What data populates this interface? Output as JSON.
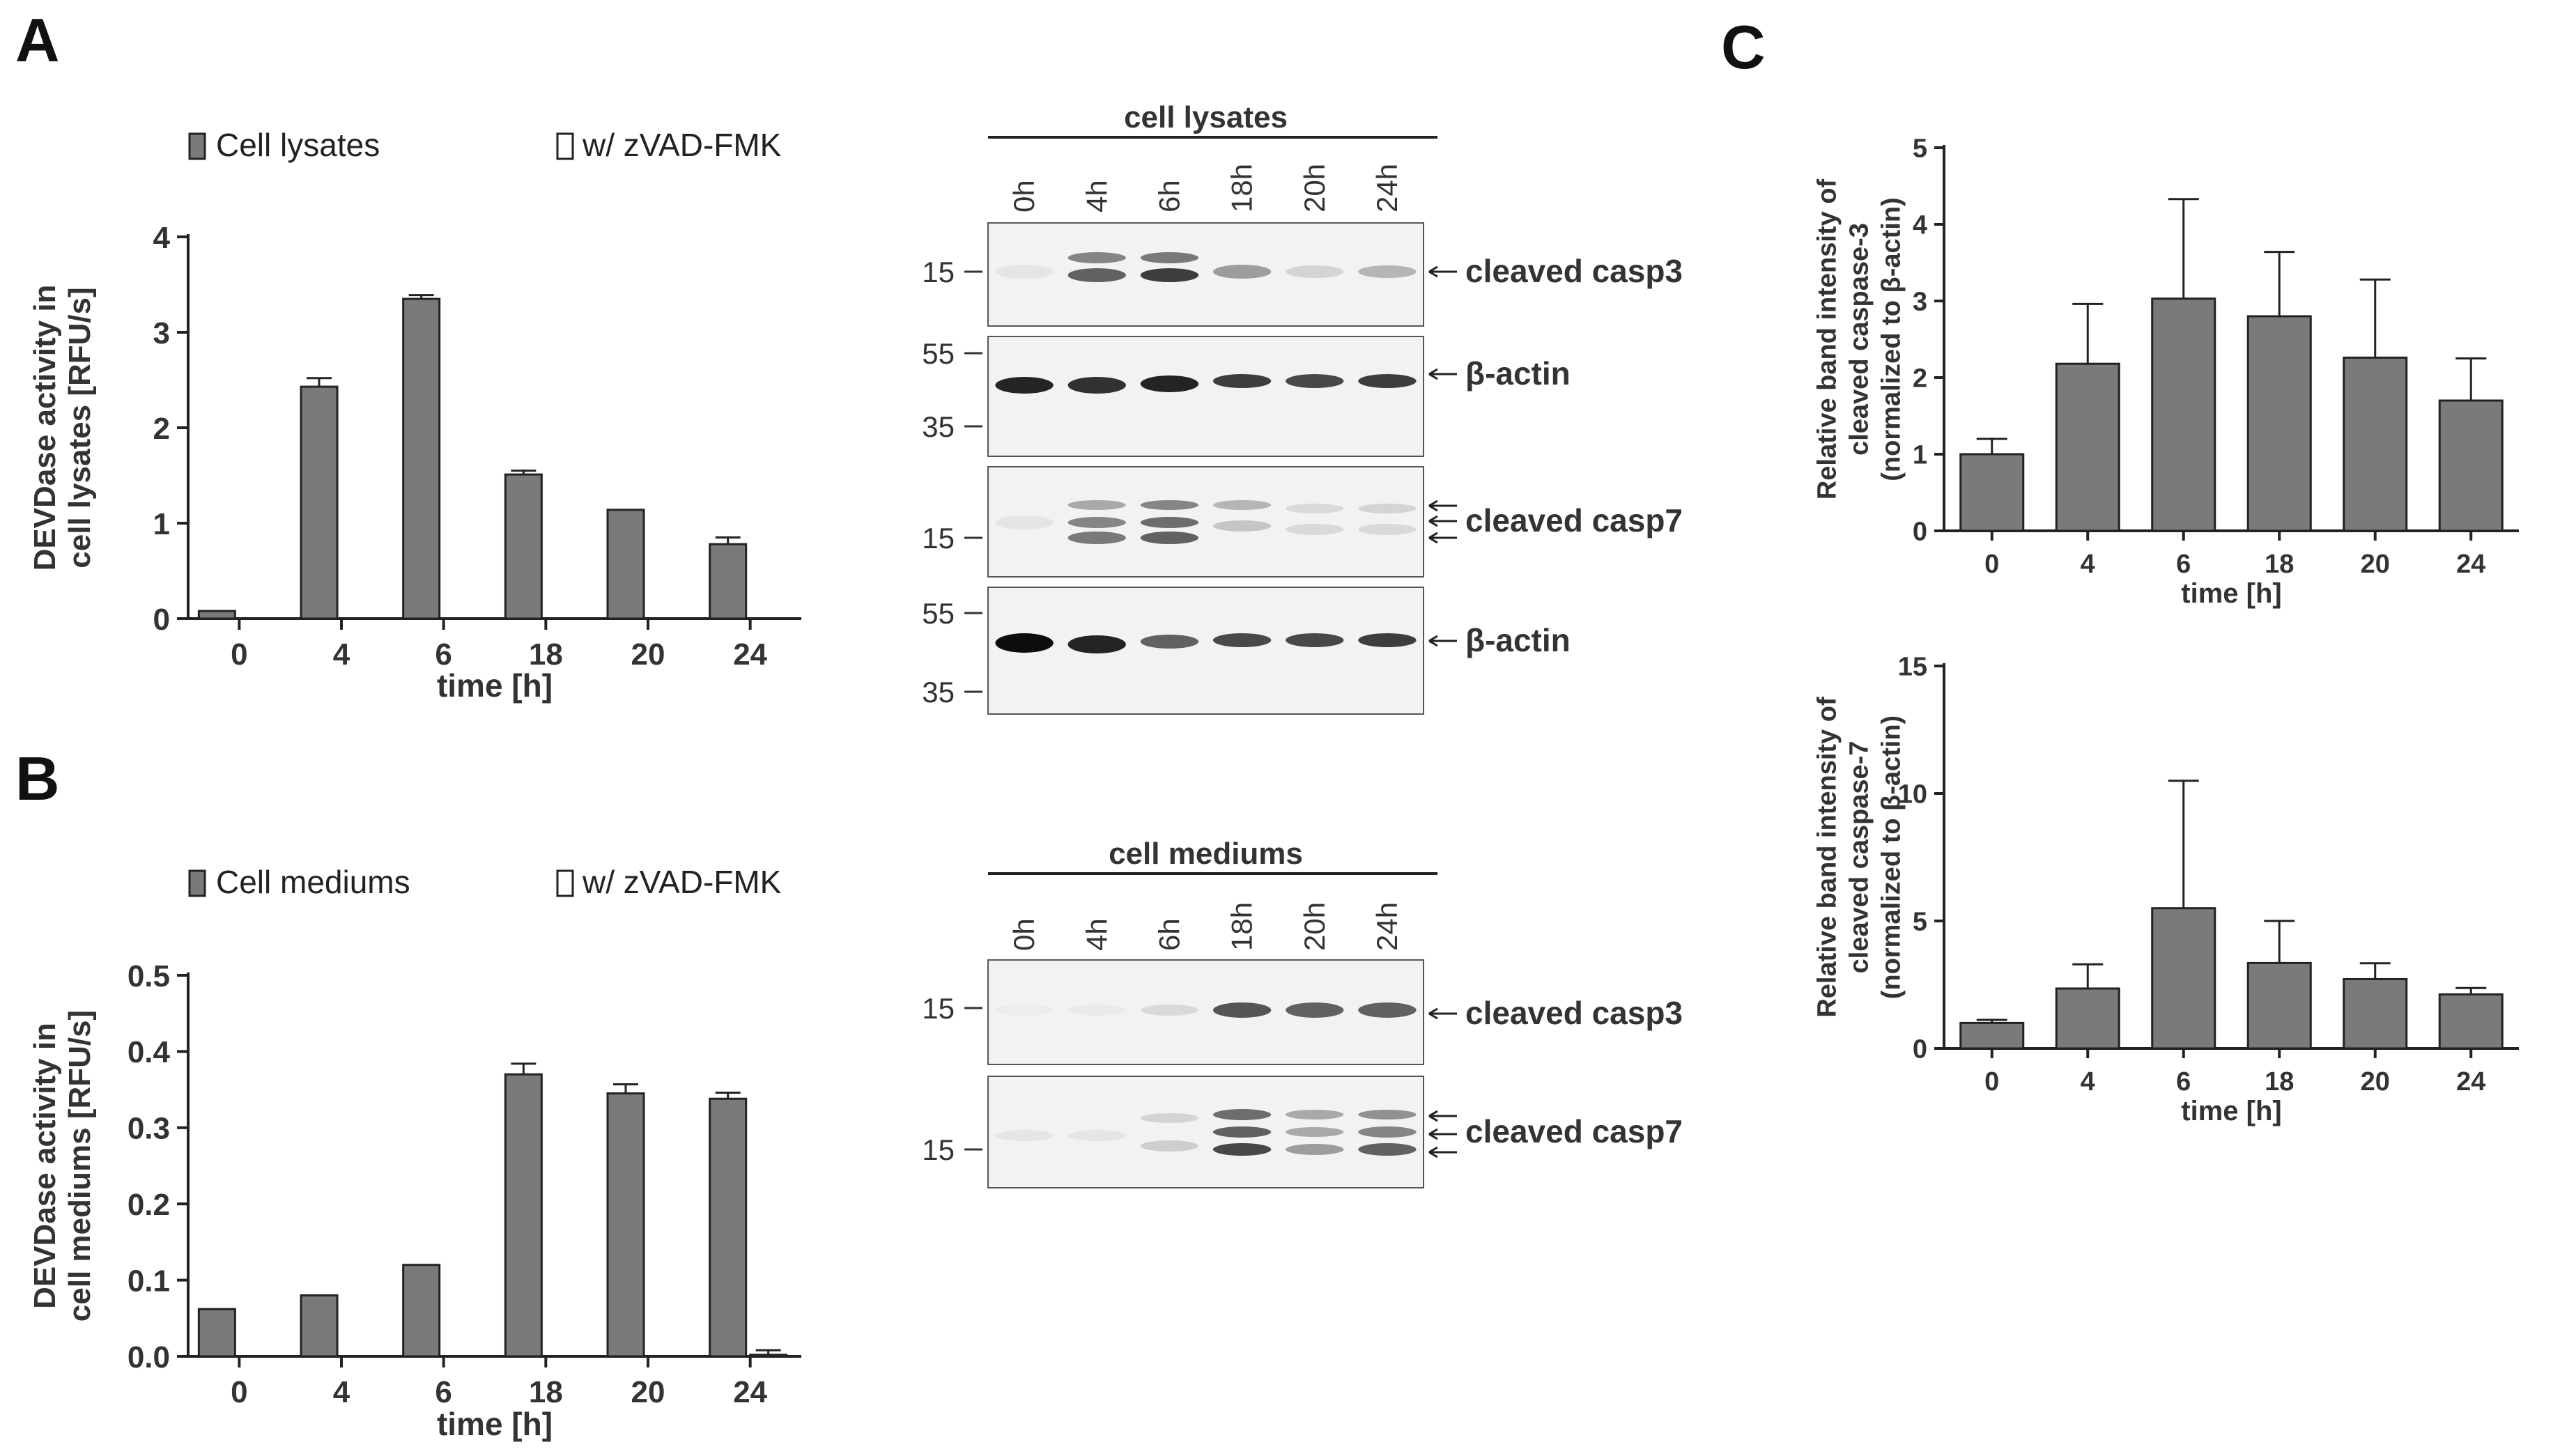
{
  "panels": {
    "A": "A",
    "B": "B",
    "C": "C"
  },
  "colors": {
    "bar_fill": "#7a7a7a",
    "bar_stroke": "#222222",
    "open_fill": "#ffffff",
    "axis": "#222222",
    "blot_bg": "#f2f2f2"
  },
  "chart_data": [
    {
      "id": "A",
      "type": "bar",
      "legend": [
        "Cell lysates",
        "w/ zVAD-FMK"
      ],
      "categories": [
        "0",
        "4",
        "6",
        "18",
        "20",
        "24"
      ],
      "series": [
        {
          "name": "Cell lysates",
          "values": [
            0.08,
            2.43,
            3.35,
            1.51,
            1.14,
            0.78
          ],
          "errors": [
            0.0,
            0.09,
            0.04,
            0.04,
            0.0,
            0.07
          ]
        },
        {
          "name": "w/ zVAD-FMK",
          "values": [
            0.0,
            0.0,
            0.0,
            0.0,
            0.0,
            0.0
          ],
          "errors": [
            0,
            0,
            0,
            0,
            0,
            0
          ]
        }
      ],
      "xlabel": "time [h]",
      "ylabel": [
        "DEVDase activity in",
        "cell lysates [RFU/s]"
      ],
      "ylim": [
        0,
        4
      ],
      "yticks": [
        "0",
        "1",
        "2",
        "3",
        "4"
      ]
    },
    {
      "id": "B",
      "type": "bar",
      "legend": [
        "Cell mediums",
        "w/ zVAD-FMK"
      ],
      "categories": [
        "0",
        "4",
        "6",
        "18",
        "20",
        "24"
      ],
      "series": [
        {
          "name": "Cell mediums",
          "values": [
            0.062,
            0.08,
            0.12,
            0.37,
            0.345,
            0.338
          ],
          "errors": [
            0.0,
            0.0,
            0.0,
            0.014,
            0.012,
            0.008
          ]
        },
        {
          "name": "w/ zVAD-FMK",
          "values": [
            0.0,
            0.0,
            0.0,
            0.0,
            0.0,
            0.002
          ],
          "errors": [
            0,
            0,
            0,
            0,
            0,
            0.006
          ]
        }
      ],
      "xlabel": "time [h]",
      "ylabel": [
        "DEVDase activity in",
        "cell mediums [RFU/s]"
      ],
      "ylim": [
        0,
        0.5
      ],
      "yticks": [
        "0.0",
        "0.1",
        "0.2",
        "0.3",
        "0.4",
        "0.5"
      ]
    },
    {
      "id": "C1",
      "type": "bar",
      "categories": [
        "0",
        "4",
        "6",
        "18",
        "20",
        "24"
      ],
      "series": [
        {
          "values": [
            1.0,
            2.18,
            3.03,
            2.8,
            2.26,
            1.7
          ],
          "errors": [
            0.2,
            0.78,
            1.3,
            0.84,
            1.02,
            0.55
          ]
        }
      ],
      "xlabel": "time [h]",
      "ylabel": [
        "Relative band intensity of",
        "cleaved caspase-3",
        "(normalized to β-actin)"
      ],
      "ylim": [
        0,
        5
      ],
      "yticks": [
        "0",
        "1",
        "2",
        "3",
        "4",
        "5"
      ]
    },
    {
      "id": "C2",
      "type": "bar",
      "categories": [
        "0",
        "4",
        "6",
        "18",
        "20",
        "24"
      ],
      "series": [
        {
          "values": [
            1.0,
            2.35,
            5.5,
            3.35,
            2.72,
            2.12
          ],
          "errors": [
            0.12,
            0.95,
            5.0,
            1.65,
            0.62,
            0.25
          ]
        }
      ],
      "xlabel": "time [h]",
      "ylabel": [
        "Relative band intensity of",
        "cleaved caspase-7",
        "(normalized to β-actin)"
      ],
      "ylim": [
        0,
        15
      ],
      "yticks": [
        "0",
        "5",
        "10",
        "15"
      ]
    }
  ],
  "blots": {
    "lysates": {
      "title": "cell lysates",
      "lanes": [
        "0h",
        "4h",
        "6h",
        "18h",
        "20h",
        "24h"
      ],
      "strips": [
        {
          "markers": [
            "15"
          ],
          "label": "cleaved casp3",
          "arrows": 1
        },
        {
          "markers": [
            "55",
            "35"
          ],
          "label": "β-actin",
          "arrows": 1
        },
        {
          "markers": [
            "15"
          ],
          "label": "cleaved casp7",
          "arrows": 3
        },
        {
          "markers": [
            "55",
            "35"
          ],
          "label": "β-actin",
          "arrows": 1
        }
      ]
    },
    "mediums": {
      "title": "cell mediums",
      "lanes": [
        "0h",
        "4h",
        "6h",
        "18h",
        "20h",
        "24h"
      ],
      "strips": [
        {
          "markers": [
            "15"
          ],
          "label": "cleaved casp3",
          "arrows": 1
        },
        {
          "markers": [
            "15"
          ],
          "label": "cleaved casp7",
          "arrows": 3
        }
      ]
    }
  }
}
